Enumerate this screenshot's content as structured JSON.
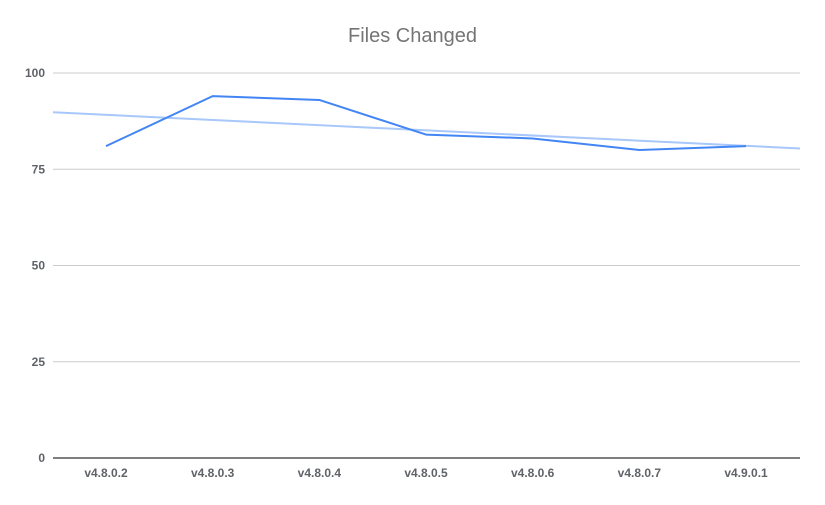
{
  "chart_data": {
    "type": "line",
    "title": "Files Changed",
    "xlabel": "",
    "ylabel": "",
    "categories": [
      "v4.8.0.2",
      "v4.8.0.3",
      "v4.8.0.4",
      "v4.8.0.5",
      "v4.8.0.6",
      "v4.8.0.7",
      "v4.9.0.1"
    ],
    "series": [
      {
        "values": [
          81,
          94,
          93,
          84,
          83,
          80,
          81
        ],
        "color": "#4285f4"
      }
    ],
    "trendline": {
      "start": 89.8,
      "end": 80.4,
      "color": "#a8c7fa"
    },
    "ylim": [
      0,
      100
    ],
    "yticks": [
      0,
      25,
      50,
      75,
      100
    ],
    "grid": true,
    "legend": "none"
  }
}
